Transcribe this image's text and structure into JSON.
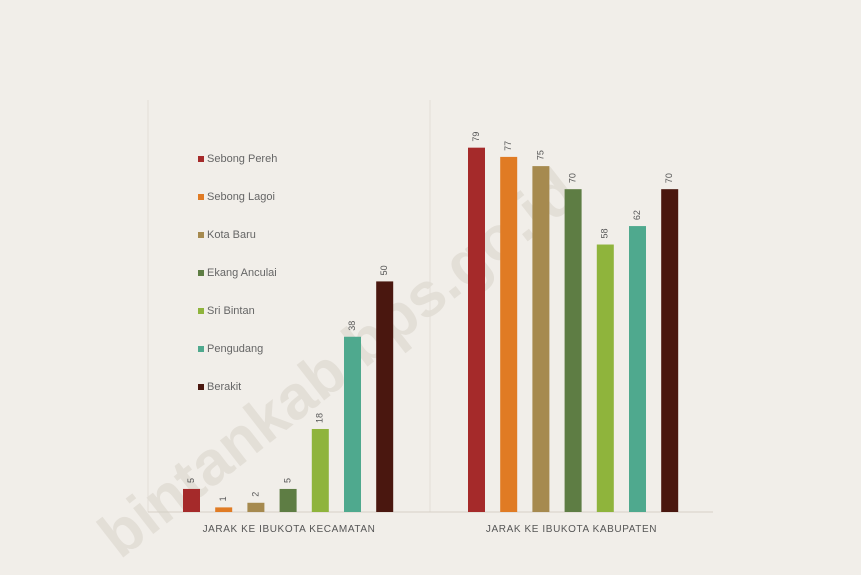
{
  "watermark": "bintankab.bps.go.id",
  "chart_data": {
    "type": "bar",
    "categories": [
      "JARAK KE IBUKOTA KECAMATAN",
      "JARAK KE IBUKOTA KABUPATEN"
    ],
    "series": [
      {
        "name": "Sebong Pereh",
        "color": "#a52a2a",
        "values": [
          5,
          79
        ]
      },
      {
        "name": "Sebong Lagoi",
        "color": "#e07b24",
        "values": [
          1,
          77
        ]
      },
      {
        "name": "Kota Baru",
        "color": "#a68a4f",
        "values": [
          2,
          75
        ]
      },
      {
        "name": "Ekang Anculai",
        "color": "#5e7d44",
        "values": [
          5,
          70
        ]
      },
      {
        "name": "Sri Bintan",
        "color": "#8fb43c",
        "values": [
          18,
          58
        ]
      },
      {
        "name": "Pengudang",
        "color": "#4fa98e",
        "values": [
          38,
          62
        ]
      },
      {
        "name": "Berakit",
        "color": "#4a170f",
        "values": [
          50,
          70
        ]
      }
    ],
    "title": "",
    "xlabel": "",
    "ylabel": "",
    "ylim": [
      0,
      85
    ],
    "grid": false,
    "legend": "left, inside first panel"
  }
}
